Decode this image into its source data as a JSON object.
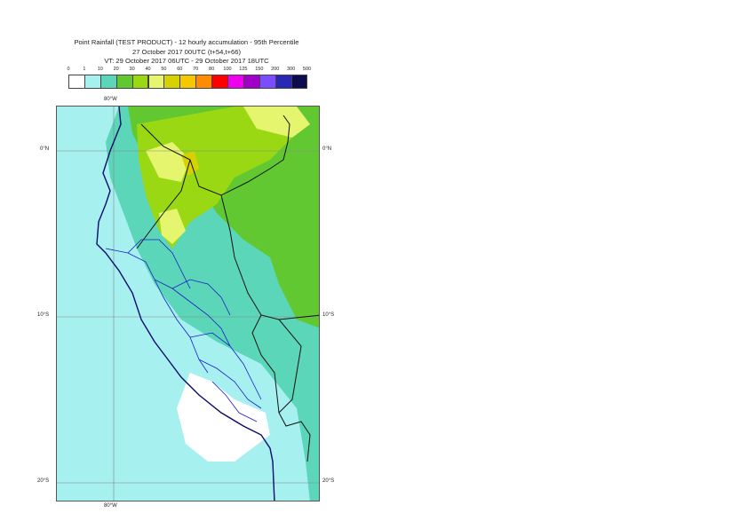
{
  "title": {
    "line1": "Point Rainfall (TEST PRODUCT) - 12 hourly accumulation - 95th Percentile",
    "line2": "27 October 2017 00UTC (t+54,t+66)",
    "line3": "VT: 29 October 2017 06UTC - 29 October 2017 18UTC"
  },
  "legend": {
    "thresholds": [
      "0",
      "1",
      "10",
      "20",
      "30",
      "40",
      "50",
      "60",
      "70",
      "80",
      "100",
      "125",
      "150",
      "200",
      "300",
      "500"
    ],
    "colors": [
      "#ffffff",
      "#a6f0f0",
      "#5cd6b8",
      "#62c832",
      "#9ad814",
      "#e6f56e",
      "#d6d200",
      "#f6c800",
      "#ff8c00",
      "#ff0000",
      "#ee00ee",
      "#a000c8",
      "#7c4cff",
      "#2828b4",
      "#0c0c50"
    ]
  },
  "map": {
    "top_labels": [
      "80°W"
    ],
    "bottom_labels": [
      "80°W"
    ],
    "left_labels": [
      "0°N",
      "10°S",
      "20°S"
    ],
    "right_labels": [
      "0°N",
      "10°S",
      "20°S"
    ]
  }
}
